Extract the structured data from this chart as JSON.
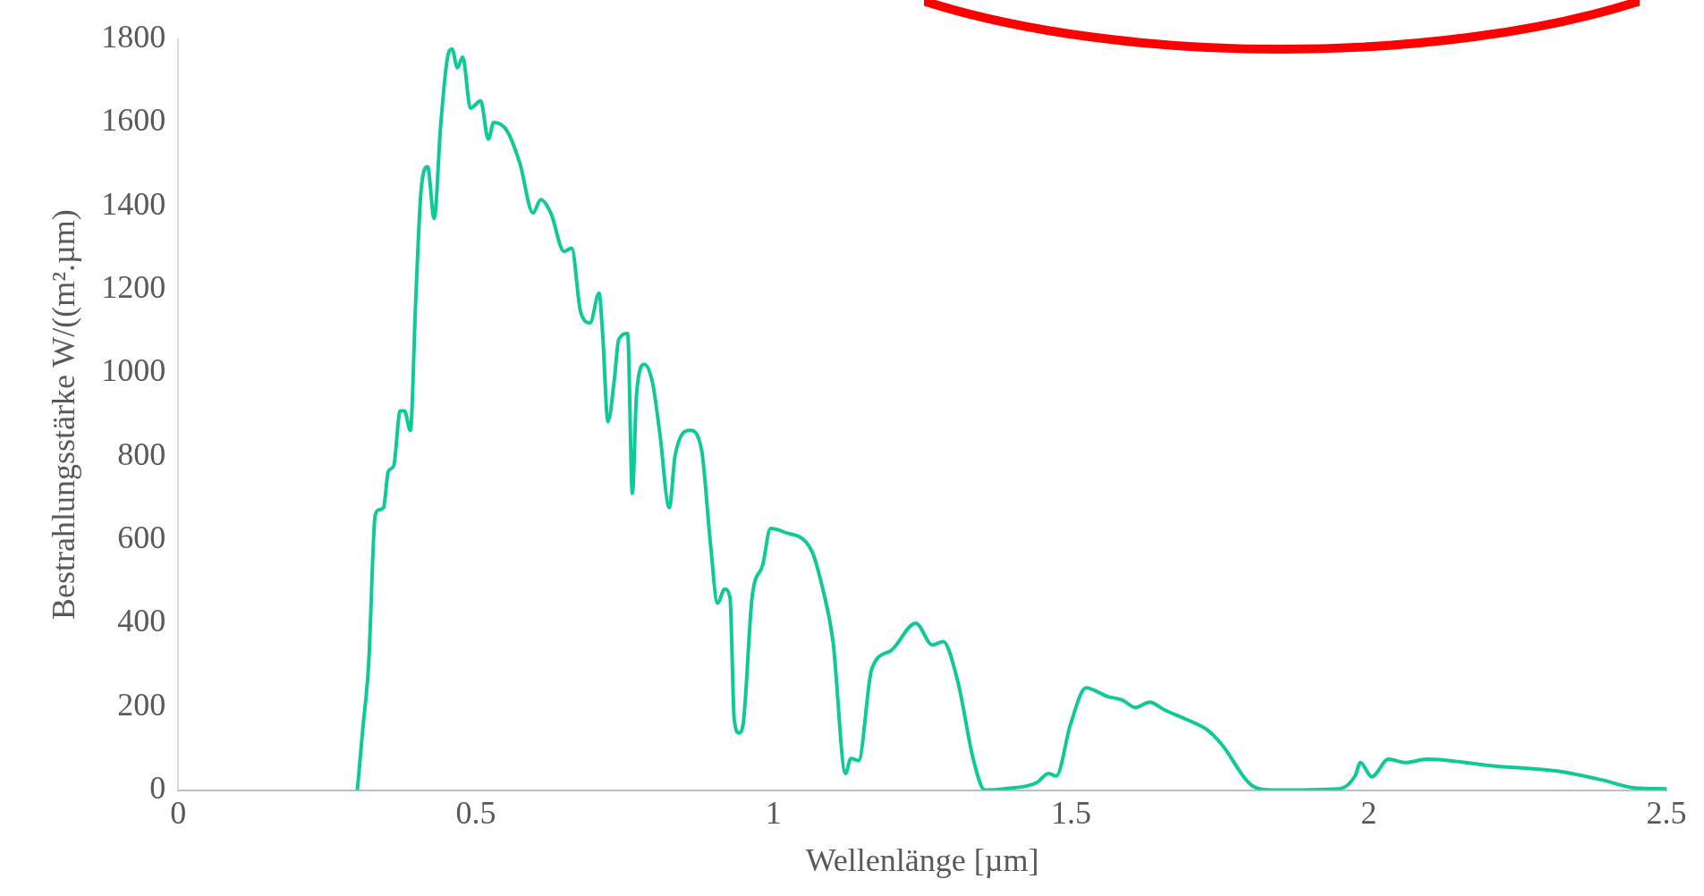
{
  "chart_data": {
    "type": "line",
    "xlabel": "Wellenlänge [µm]",
    "ylabel": "Bestrahlungsstärke W/((m².µm)",
    "x": [
      0.301,
      0.31,
      0.32,
      0.331,
      0.338,
      0.345,
      0.353,
      0.362,
      0.373,
      0.38,
      0.39,
      0.399,
      0.408,
      0.419,
      0.43,
      0.441,
      0.452,
      0.46,
      0.469,
      0.478,
      0.491,
      0.508,
      0.521,
      0.53,
      0.552,
      0.574,
      0.596,
      0.609,
      0.626,
      0.648,
      0.661,
      0.676,
      0.692,
      0.707,
      0.713,
      0.722,
      0.733,
      0.74,
      0.755,
      0.763,
      0.77,
      0.783,
      0.797,
      0.809,
      0.825,
      0.835,
      0.86,
      0.879,
      0.894,
      0.906,
      0.918,
      0.927,
      0.934,
      0.942,
      0.949,
      0.964,
      0.982,
      0.995,
      1.017,
      1.064,
      1.082,
      1.1,
      1.121,
      1.13,
      1.143,
      1.165,
      1.198,
      1.239,
      1.267,
      1.285,
      1.309,
      1.337,
      1.355,
      1.387,
      1.442,
      1.462,
      1.475,
      1.499,
      1.525,
      1.562,
      1.586,
      1.608,
      1.632,
      1.657,
      1.691,
      1.728,
      1.752,
      1.807,
      1.839,
      1.95,
      1.977,
      1.986,
      2.005,
      2.033,
      2.061,
      2.098,
      2.208,
      2.319,
      2.393,
      2.448,
      2.5
    ],
    "series": [
      {
        "color": "#10c998",
        "values": [
          0,
          145,
          303,
          659,
          672,
          677,
          764,
          777,
          909,
          909,
          862,
          1173,
          1436,
          1494,
          1370,
          1594,
          1752,
          1776,
          1731,
          1757,
          1634,
          1652,
          1560,
          1600,
          1581,
          1502,
          1383,
          1415,
          1383,
          1291,
          1299,
          1146,
          1120,
          1191,
          1094,
          883,
          988,
          1080,
          1094,
          711,
          949,
          1020,
          975,
          856,
          677,
          804,
          862,
          817,
          593,
          448,
          482,
          461,
          171,
          137,
          158,
          461,
          540,
          627,
          619,
          574,
          487,
          356,
          40,
          76,
          71,
          290,
          335,
          400,
          348,
          356,
          264,
          66,
          0,
          3,
          18,
          40,
          34,
          158,
          245,
          224,
          216,
          198,
          211,
          192,
          171,
          145,
          111,
          8,
          0,
          3,
          34,
          66,
          32,
          74,
          66,
          74,
          58,
          45,
          24,
          5,
          3
        ]
      }
    ],
    "xlim": [
      0,
      2.5
    ],
    "xticks": [
      0,
      0.5,
      1,
      1.5,
      2,
      2.5
    ],
    "ylim": [
      0,
      1800
    ],
    "yticks": [
      0,
      200,
      400,
      600,
      800,
      1000,
      1200,
      1400,
      1600,
      1800
    ],
    "grid": false,
    "legend": false,
    "marker": "none",
    "line_style": "solid"
  }
}
